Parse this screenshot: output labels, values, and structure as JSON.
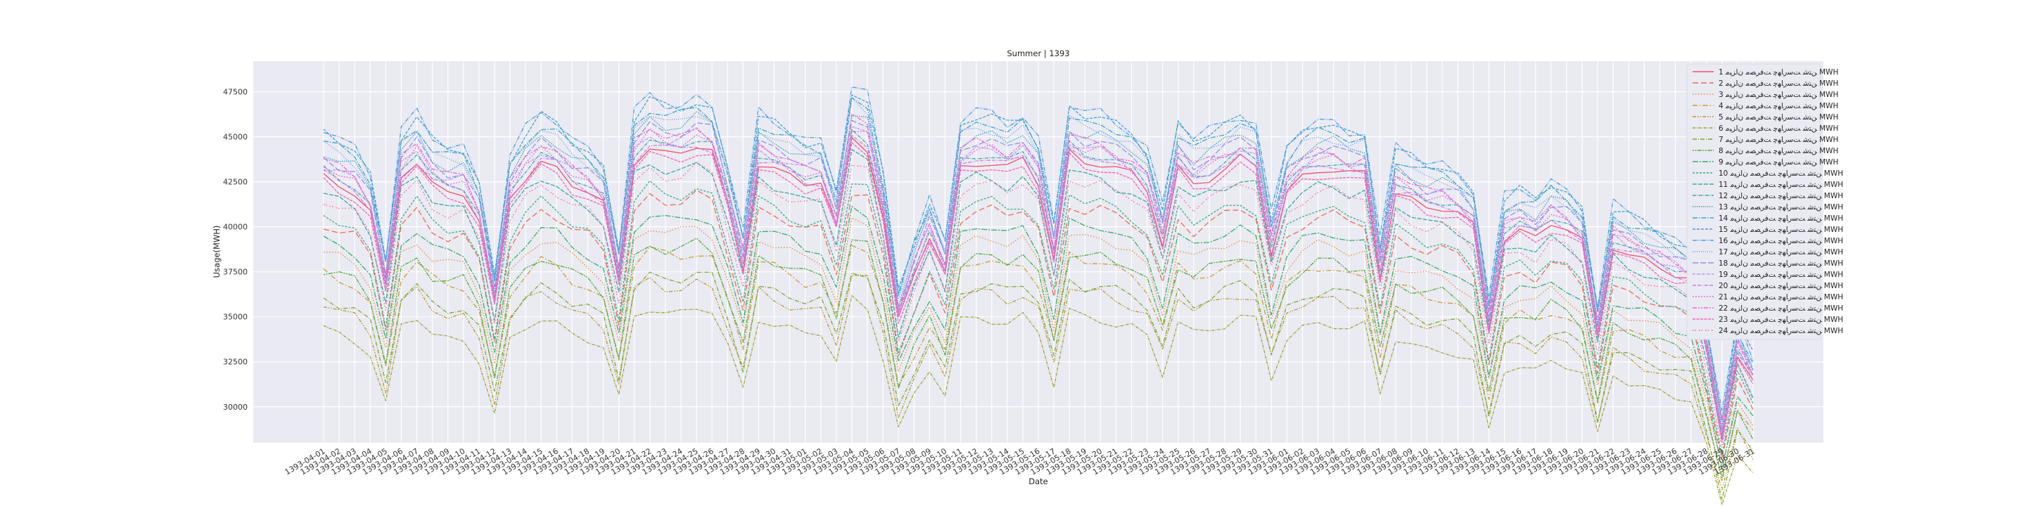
{
  "chart_data": {
    "type": "line",
    "title": "Summer | 1393",
    "xlabel": "Date",
    "ylabel": "Usage(MWH)",
    "ylim": [
      28000,
      49200
    ],
    "yticks": [
      30000,
      32500,
      35000,
      37500,
      40000,
      42500,
      45000,
      47500
    ],
    "grid": true,
    "legend_position": "top-right",
    "x": [
      "1393-04-01",
      "1393-04-02",
      "1393-04-03",
      "1393-04-04",
      "1393-04-05",
      "1393-04-06",
      "1393-04-07",
      "1393-04-08",
      "1393-04-09",
      "1393-04-10",
      "1393-04-11",
      "1393-04-12",
      "1393-04-13",
      "1393-04-14",
      "1393-04-15",
      "1393-04-16",
      "1393-04-17",
      "1393-04-18",
      "1393-04-19",
      "1393-04-20",
      "1393-04-21",
      "1393-04-22",
      "1393-04-23",
      "1393-04-24",
      "1393-04-25",
      "1393-04-26",
      "1393-04-27",
      "1393-04-28",
      "1393-04-29",
      "1393-04-30",
      "1393-04-31",
      "1393-05-01",
      "1393-05-02",
      "1393-05-03",
      "1393-05-04",
      "1393-05-05",
      "1393-05-06",
      "1393-05-07",
      "1393-05-08",
      "1393-05-09",
      "1393-05-10",
      "1393-05-11",
      "1393-05-12",
      "1393-05-13",
      "1393-05-14",
      "1393-05-15",
      "1393-05-16",
      "1393-05-17",
      "1393-05-18",
      "1393-05-19",
      "1393-05-20",
      "1393-05-21",
      "1393-05-22",
      "1393-05-23",
      "1393-05-24",
      "1393-05-25",
      "1393-05-26",
      "1393-05-27",
      "1393-05-28",
      "1393-05-29",
      "1393-05-30",
      "1393-05-31",
      "1393-06-01",
      "1393-06-02",
      "1393-06-03",
      "1393-06-04",
      "1393-06-05",
      "1393-06-06",
      "1393-06-07",
      "1393-06-08",
      "1393-06-09",
      "1393-06-10",
      "1393-06-11",
      "1393-06-12",
      "1393-06-13",
      "1393-06-14",
      "1393-06-15",
      "1393-06-16",
      "1393-06-17",
      "1393-06-18",
      "1393-06-19",
      "1393-06-20",
      "1393-06-21",
      "1393-06-22",
      "1393-06-23",
      "1393-06-24",
      "1393-06-25",
      "1393-06-26",
      "1393-06-27",
      "1393-06-28",
      "1393-06-29",
      "1393-06-30",
      "1393-06-31"
    ],
    "base_profile": [
      1.01,
      1.0,
      0.99,
      0.96,
      0.86,
      1.01,
      1.03,
      1.0,
      0.99,
      0.99,
      0.95,
      0.84,
      0.98,
      1.01,
      1.03,
      1.02,
      1.0,
      0.99,
      0.97,
      0.87,
      1.03,
      1.05,
      1.04,
      1.04,
      1.05,
      1.04,
      0.97,
      0.89,
      1.03,
      1.02,
      1.01,
      1.0,
      1.0,
      0.94,
      1.06,
      1.05,
      0.96,
      0.82,
      0.88,
      0.93,
      0.88,
      1.02,
      1.03,
      1.03,
      1.02,
      1.03,
      1.0,
      0.9,
      1.04,
      1.03,
      1.03,
      1.02,
      1.01,
      0.99,
      0.92,
      1.02,
      1.0,
      1.01,
      1.02,
      1.03,
      1.02,
      0.91,
      0.99,
      1.01,
      1.02,
      1.02,
      1.01,
      1.01,
      0.88,
      0.99,
      0.98,
      0.97,
      0.97,
      0.96,
      0.94,
      0.81,
      0.93,
      0.94,
      0.93,
      0.95,
      0.94,
      0.92,
      0.8,
      0.92,
      0.91,
      0.9,
      0.89,
      0.88,
      0.87,
      0.78,
      0.67,
      0.78,
      0.74
    ],
    "series": [
      {
        "name": "1 ﻦﺘﺷ ﺖﺳﺭﺎﻬﭼ ﺖﻓﺮﺼﻣ ﻥﺍﺰﯿﻣ MWH",
        "color": "#f0506d",
        "dash": "none",
        "level": 42400,
        "amp": 1.0
      },
      {
        "name": "2 ﻦﺘﺷ ﺖﺳﺭﺎﻬﭼ ﺖﻓﺮﺼﻣ ﻥﺍﺰﯿﻣ MWH",
        "color": "#ee6b51",
        "dash": "8,4",
        "level": 39800,
        "amp": 0.96
      },
      {
        "name": "3 ﻦﺘﺷ ﺖﺳﺭﺎﻬﭼ ﺖﻓﺮﺼﻣ ﻥﺍﺰﯿﻣ MWH",
        "color": "#e38b3c",
        "dash": "1.5,2.5",
        "level": 38200,
        "amp": 0.93
      },
      {
        "name": "4 ﻦﺘﺷ ﺖﺳﺭﺎﻬﭼ ﺖﻓﺮﺼﻣ ﻥﺍﺰﯿﻣ MWH",
        "color": "#c99a35",
        "dash": "7,3,1.5,3",
        "level": 37000,
        "amp": 0.9
      },
      {
        "name": "5 ﻦﺘﺷ ﺖﺳﺭﺎﻬﭼ ﺖﻓﺮﺼﻣ ﻥﺍﺰﯿﻣ MWH",
        "color": "#b09a30",
        "dash": "5,2,1.5,2,1.5,2",
        "level": 35400,
        "amp": 0.88
      },
      {
        "name": "6 ﻦﺘﺷ ﺖﺳﺭﺎﻬﭼ ﺖﻓﺮﺼﻣ ﻥﺍﺰﯿﻣ MWH",
        "color": "#9aa12f",
        "dash": "4,1.5,1,1.5",
        "level": 34100,
        "amp": 0.86
      },
      {
        "name": "7 ﻦﺘﺷ ﺖﺳﺭﺎﻬﭼ ﺖﻓﺮﺼﻣ ﻥﺍﺰﯿﻣ MWH",
        "color": "#7aa832",
        "dash": "6,2,1,2",
        "level": 35800,
        "amp": 0.9
      },
      {
        "name": "8 ﻦﺘﺷ ﺖﺳﺭﺎﻬﭼ ﺖﻓﺮﺼﻣ ﻥﺍﺰﯿﻣ MWH",
        "color": "#4fab3d",
        "dash": "2,1.5,2,1.5,6,1.5",
        "level": 37300,
        "amp": 0.92
      },
      {
        "name": "9 ﻦﺘﺷ ﺖﺳﺭﺎﻬﭼ ﺖﻓﺮﺼﻣ ﻥﺍﺰﯿﻣ MWH",
        "color": "#35ad6a",
        "dash": "8,2,2,2",
        "level": 38800,
        "amp": 0.95
      },
      {
        "name": "10 ﻦﺘﺷ ﺖﺳﺭﺎﻬﭼ ﺖﻓﺮﺼﻣ ﻥﺍﺰﯿﻣ MWH",
        "color": "#36ab89",
        "dash": "3,2",
        "level": 40200,
        "amp": 0.97
      },
      {
        "name": "11 ﻦﺘﺷ ﺖﺳﺭﺎﻬﭼ ﺖﻓﺮﺼﻣ ﻥﺍﺰﯿﻣ MWH",
        "color": "#38a99c",
        "dash": "6,2",
        "level": 41500,
        "amp": 0.99
      },
      {
        "name": "12 ﻦﺘﺷ ﺖﺳﺭﺎﻬﭼ ﺖﻓﺮﺼﻣ ﻥﺍﺰﯿﻣ MWH",
        "color": "#39a8ab",
        "dash": "5,1.5,1,1.5",
        "level": 42800,
        "amp": 1.0
      },
      {
        "name": "13 ﻦﺘﺷ ﺖﺳﺭﺎﻬﭼ ﺖﻓﺮﺼﻣ ﻥﺍﺰﯿﻣ MWH",
        "color": "#3ba6b8",
        "dash": "1.5,1.5",
        "level": 43800,
        "amp": 1.02
      },
      {
        "name": "14 ﻦﺘﺷ ﺖﺳﺭﺎﻬﭼ ﺖﻓﺮﺼﻣ ﻥﺍﺰﯿﻣ MWH",
        "color": "#3da4c4",
        "dash": "7,2,1.5,2",
        "level": 44300,
        "amp": 1.03
      },
      {
        "name": "15 ﻦﺘﺷ ﺖﺳﺭﺎﻬﭼ ﺖﻓﺮﺼﻣ ﻥﺍﺰﯿﻣ MWH",
        "color": "#41a0d2",
        "dash": "4,2",
        "level": 44700,
        "amp": 1.03
      },
      {
        "name": "16 ﻦﺘﺷ ﺖﺳﺭﺎﻬﭼ ﺖﻓﺮﺼﻣ ﻥﺍﺰﯿﻣ MWH",
        "color": "#479be0",
        "dash": "6,1.5,1,1.5,1,1.5",
        "level": 44900,
        "amp": 1.04
      },
      {
        "name": "17 ﻦﺘﺷ ﺖﺳﺭﺎﻬﭼ ﺖﻓﺮﺼﻣ ﻥﺍﺰﯿﻣ MWH",
        "color": "#6e97ec",
        "dash": "1,2",
        "level": 44100,
        "amp": 1.03
      },
      {
        "name": "18 ﻦﺘﺷ ﺖﺳﺭﺎﻬﭼ ﺖﻓﺮﺼﻣ ﻥﺍﺰﯿﻣ MWH",
        "color": "#9590ef",
        "dash": "8,3",
        "level": 43500,
        "amp": 1.02
      },
      {
        "name": "19 ﻦﺘﺷ ﺖﺳﺭﺎﻬﭼ ﺖﻓﺮﺼﻣ ﻥﺍﺰﯿﻣ MWH",
        "color": "#b387ee",
        "dash": "3,1.5,1,1.5",
        "level": 43000,
        "amp": 1.01
      },
      {
        "name": "20 ﻦﺘﺷ ﺖﺳﺭﺎﻬﭼ ﺖﻓﺮﺼﻣ ﻥﺍﺰﯿﻣ MWH",
        "color": "#ca7de8",
        "dash": "5,2,5,2,1,2",
        "level": 42500,
        "amp": 1.0
      },
      {
        "name": "21 ﻦﺘﺷ ﺖﺳﺭﺎﻬﭼ ﺖﻓﺮﺼﻣ ﻥﺍﺰﯿﻣ MWH",
        "color": "#de73db",
        "dash": "2,2",
        "level": 42900,
        "amp": 1.01
      },
      {
        "name": "22 ﻦﺘﺷ ﺖﺳﺭﺎﻬﭼ ﺖﻓﺮﺼﻣ ﻥﺍﺰﯿﻣ MWH",
        "color": "#eb6bc9",
        "dash": "6,2,2,2,2,2",
        "level": 43300,
        "amp": 1.01
      },
      {
        "name": "23 ﻦﺘﺷ ﺖﺳﺭﺎﻬﭼ ﺖﻓﺮﺼﻣ ﻥﺍﺰﯿﻣ MWH",
        "color": "#f166b2",
        "dash": "4,1.5",
        "level": 42100,
        "amp": 1.0
      },
      {
        "name": "24 ﻦﺘﺷ ﺖﺳﺭﺎﻬﭼ ﺖﻓﺮﺼﻣ ﻥﺍﺰﯿﻣ MWH",
        "color": "#f36396",
        "dash": "1.5,2,1.5,4",
        "level": 41200,
        "amp": 0.99
      }
    ]
  }
}
